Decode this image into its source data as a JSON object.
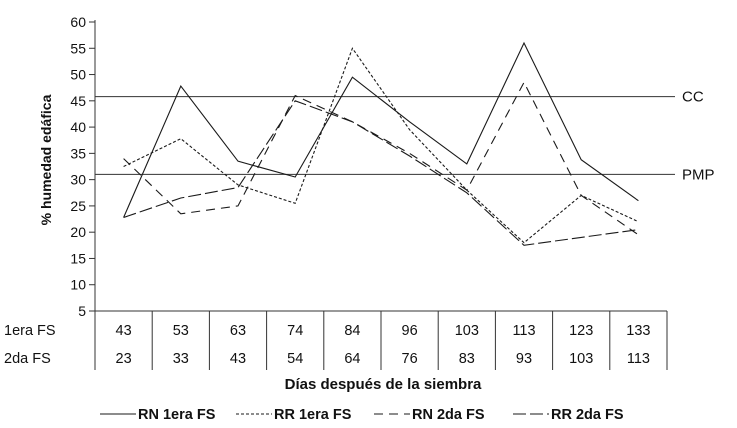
{
  "chart_data": {
    "type": "line",
    "ylabel": "% humedad edáfica",
    "xlabel": "Días después de la siembra",
    "ylim": [
      5,
      60
    ],
    "yticks": [
      5,
      10,
      15,
      20,
      25,
      30,
      35,
      40,
      45,
      50,
      55,
      60
    ],
    "grid": false,
    "legend_position": "bottom",
    "table_rows": [
      {
        "label": "1era FS",
        "values": [
          "43",
          "53",
          "63",
          "74",
          "84",
          "96",
          "103",
          "113",
          "123",
          "133"
        ]
      },
      {
        "label": "2da FS",
        "values": [
          "23",
          "33",
          "43",
          "54",
          "64",
          "76",
          "83",
          "93",
          "103",
          "113"
        ]
      }
    ],
    "reference_lines": [
      {
        "label": "CC",
        "value": 45.8
      },
      {
        "label": "PMP",
        "value": 31.0
      }
    ],
    "series": [
      {
        "name": "RN 1era FS",
        "dash": "solid",
        "values": [
          22.8,
          47.8,
          33.5,
          30.5,
          49.5,
          41.0,
          33.0,
          56.0,
          33.8,
          26.0
        ]
      },
      {
        "name": "RR 1era FS",
        "dash": "dotted",
        "values": [
          32.5,
          37.8,
          29.0,
          25.5,
          55.0,
          39.5,
          28.0,
          18.0,
          27.0,
          22.0
        ]
      },
      {
        "name": "RN 2da FS",
        "dash": "dashed",
        "values": [
          34.0,
          23.5,
          25.0,
          46.0,
          41.0,
          35.0,
          28.0,
          48.5,
          27.0,
          19.5
        ]
      },
      {
        "name": "RR 2da FS",
        "dash": "longdash",
        "values": [
          22.8,
          26.5,
          28.5,
          45.0,
          41.0,
          34.5,
          27.5,
          17.5,
          19.0,
          20.5
        ]
      }
    ]
  }
}
